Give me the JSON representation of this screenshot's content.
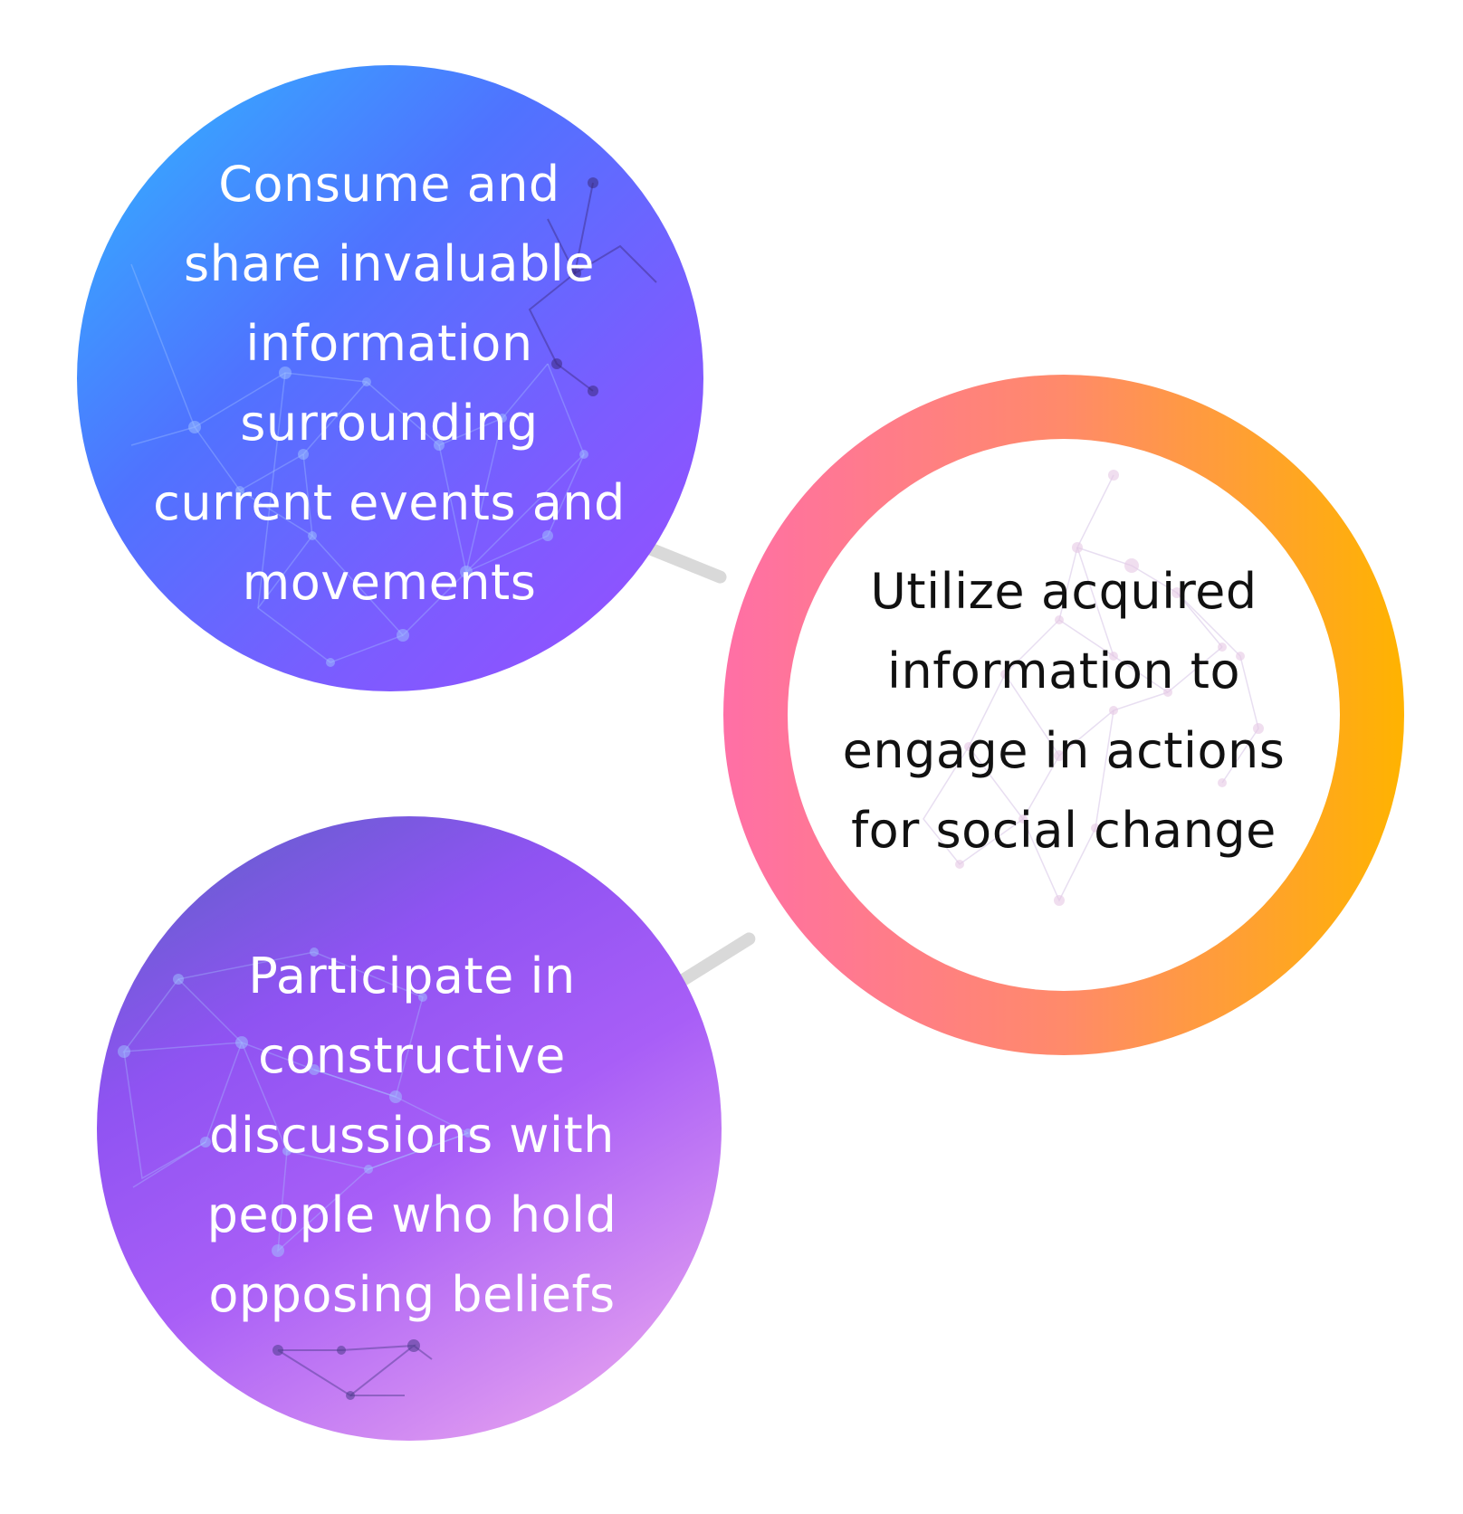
{
  "bubbles": [
    {
      "id": "top",
      "text": "Consume and\nshare invaluable\ninformation\nsurrounding\ncurrent events and\nmovements"
    },
    {
      "id": "right",
      "text": "Utilize acquired\ninformation to\nengage in actions\nfor social change"
    },
    {
      "id": "bottom",
      "text": "Participate in\nconstructive\ndiscussions with\npeople who hold\nopposing beliefs"
    }
  ],
  "colors": {
    "top_gradient": [
      "#2fb8ff",
      "#4f73ff",
      "#7c5cff",
      "#9b4dff"
    ],
    "bottom_gradient": [
      "#5a62c4",
      "#8f53f2",
      "#a85ef7",
      "#d08af2",
      "#f4b0ee"
    ],
    "ring_gradient": [
      "#ff6fa6",
      "#ff8a6a",
      "#ffb300"
    ],
    "connector": "#d9d9d9",
    "light_text": "#ffffff",
    "dark_text": "#111111"
  }
}
